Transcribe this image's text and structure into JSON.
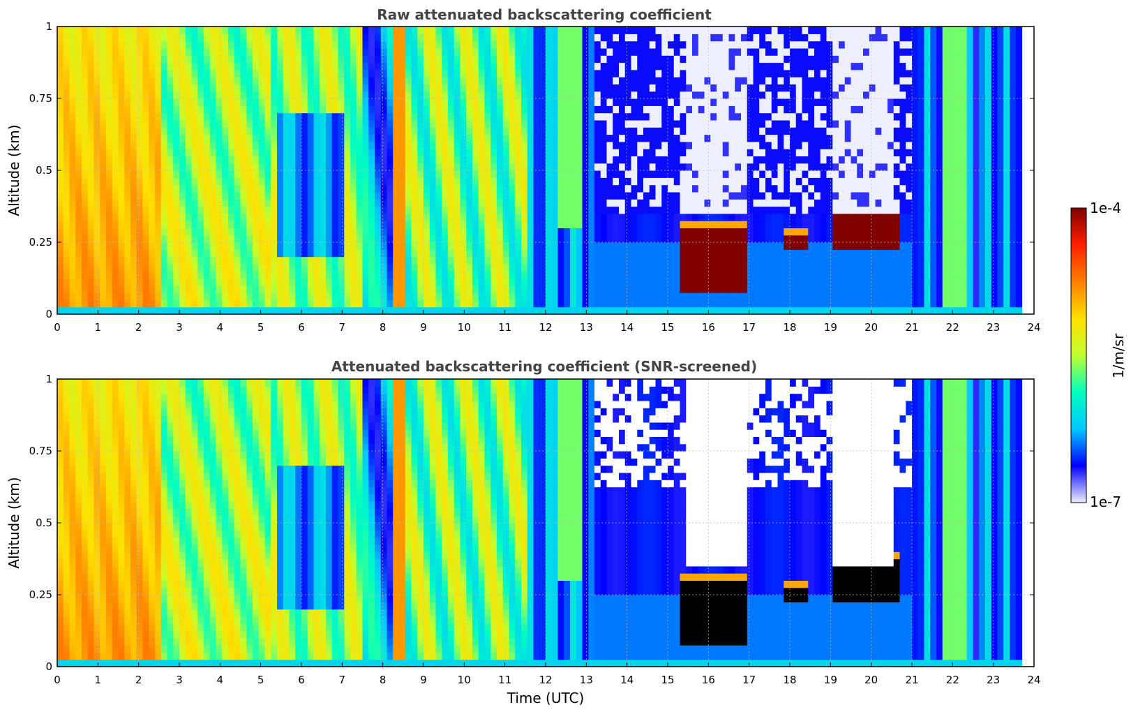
{
  "chart_data": [
    {
      "type": "heatmap",
      "title": "Raw attenuated backscattering coefficient",
      "xlabel": "",
      "ylabel": "Altitude (km)",
      "xlim": [
        0,
        24
      ],
      "ylim": [
        0,
        1
      ],
      "x_ticks": [
        0,
        1,
        2,
        3,
        4,
        5,
        6,
        7,
        8,
        9,
        10,
        11,
        12,
        13,
        14,
        15,
        16,
        17,
        18,
        19,
        20,
        21,
        22,
        23,
        24
      ],
      "y_ticks": [
        0,
        0.25,
        0.5,
        0.75,
        1
      ],
      "y_tick_labels": [
        "0",
        "0.25",
        "0.5",
        "0.75",
        "1"
      ],
      "grid": true,
      "screened": false,
      "cloud_events": [
        {
          "t_start": 15.3,
          "t_end": 16.9,
          "alt_top": 0.3,
          "alt_bottom": 0.08,
          "level": "1e-4"
        },
        {
          "t_start": 17.8,
          "t_end": 18.4,
          "alt_top": 0.27,
          "alt_bottom": 0.23,
          "level": "1e-4"
        },
        {
          "t_start": 19.0,
          "t_end": 20.7,
          "alt_top": 0.37,
          "alt_bottom": 0.22,
          "level": "1e-4"
        }
      ]
    },
    {
      "type": "heatmap",
      "title": "Attenuated backscattering coefficient (SNR-screened)",
      "xlabel": "Time (UTC)",
      "ylabel": "Altitude (km)",
      "xlim": [
        0,
        24
      ],
      "ylim": [
        0,
        1
      ],
      "x_ticks": [
        0,
        1,
        2,
        3,
        4,
        5,
        6,
        7,
        8,
        9,
        10,
        11,
        12,
        13,
        14,
        15,
        16,
        17,
        18,
        19,
        20,
        21,
        22,
        23,
        24
      ],
      "y_ticks": [
        0,
        0.25,
        0.5,
        0.75,
        1
      ],
      "y_tick_labels": [
        "0",
        "0.25",
        "0.5",
        "0.75",
        "1"
      ],
      "grid": true,
      "screened": true,
      "cloud_events": [
        {
          "t_start": 15.3,
          "t_end": 16.9,
          "alt_top": 0.3,
          "alt_bottom": 0.08,
          "level": "saturated"
        },
        {
          "t_start": 17.8,
          "t_end": 18.4,
          "alt_top": 0.27,
          "alt_bottom": 0.23,
          "level": "saturated"
        },
        {
          "t_start": 19.0,
          "t_end": 20.7,
          "alt_top": 0.37,
          "alt_bottom": 0.22,
          "level": "saturated"
        }
      ]
    }
  ],
  "colorbar": {
    "label": "1/m/sr",
    "min_label": "1e-7",
    "max_label": "1e-4",
    "scale": "log",
    "colors": [
      "#eeeeff",
      "#0000ff",
      "#00c8ff",
      "#00ffc0",
      "#c0ff30",
      "#ffe000",
      "#ff8000",
      "#ff2000",
      "#800000"
    ]
  }
}
